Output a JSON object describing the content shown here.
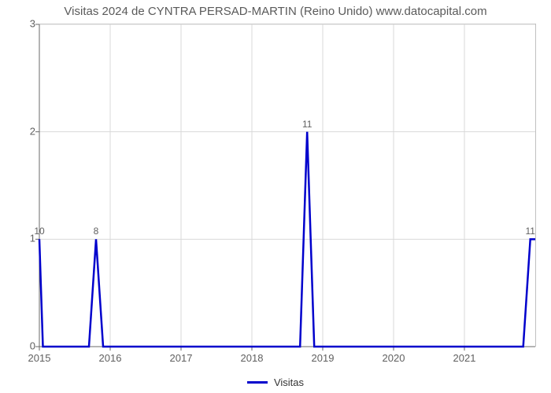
{
  "chart": {
    "type": "line",
    "title": "Visitas 2024 de CYNTRA PERSAD-MARTIN (Reino Unido) www.datocapital.com",
    "title_fontsize": 15,
    "title_color": "#5a5a5a",
    "background_color": "#ffffff",
    "plot_border_color": "#c0c0c0",
    "grid_color": "#d9d9d9",
    "grid_width": 1,
    "axis_color": "#696969",
    "axis_width": 1,
    "tick_font_size": 13,
    "tick_color": "#606060",
    "x": {
      "min": 2015,
      "max": 2022,
      "ticks": [
        2015,
        2016,
        2017,
        2018,
        2019,
        2020,
        2021
      ]
    },
    "y": {
      "min": 0,
      "max": 3,
      "ticks": [
        0,
        1,
        2,
        3
      ]
    },
    "series": {
      "name": "Visitas",
      "color": "#0000cc",
      "line_width": 2.5,
      "points": [
        {
          "x": 2015.0,
          "y": 1.0,
          "label": "10"
        },
        {
          "x": 2015.05,
          "y": 0.0
        },
        {
          "x": 2015.7,
          "y": 0.0
        },
        {
          "x": 2015.8,
          "y": 1.0,
          "label": "8"
        },
        {
          "x": 2015.9,
          "y": 0.0
        },
        {
          "x": 2018.68,
          "y": 0.0
        },
        {
          "x": 2018.78,
          "y": 2.0,
          "label": "11"
        },
        {
          "x": 2018.88,
          "y": 0.0
        },
        {
          "x": 2021.83,
          "y": 0.0
        },
        {
          "x": 2021.93,
          "y": 1.0,
          "label": "11"
        },
        {
          "x": 2022.0,
          "y": 1.0
        }
      ]
    },
    "legend": {
      "label": "Visitas",
      "swatch_color": "#0000cc",
      "swatch_width": 3,
      "font_size": 13,
      "text_color": "#333333"
    }
  }
}
